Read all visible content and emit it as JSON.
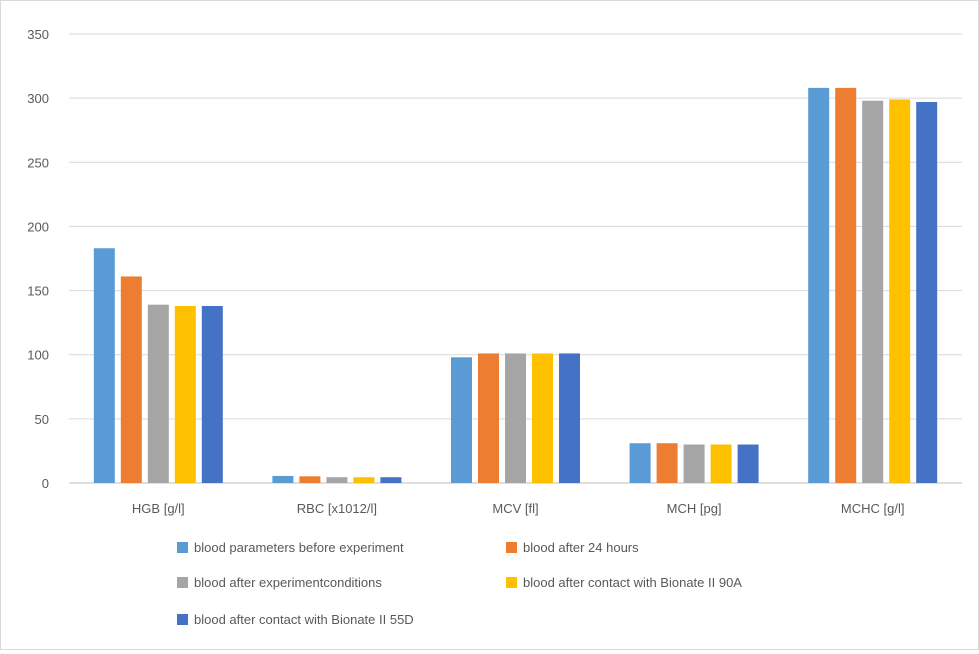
{
  "chart_data": {
    "type": "bar",
    "title": "",
    "xlabel": "",
    "ylabel": "",
    "ylim": [
      0,
      350
    ],
    "yticks": [
      0,
      50,
      100,
      150,
      200,
      250,
      300,
      350
    ],
    "grid": true,
    "legend_position": "bottom",
    "categories": [
      "HGB [g/l]",
      "RBC [x1012/l]",
      "MCV [fl]",
      "MCH [pg]",
      "MCHC [g/l]"
    ],
    "series": [
      {
        "name": "blood parameters before experiment",
        "color": "#5b9bd5",
        "values": [
          183,
          5.5,
          98,
          31,
          308
        ]
      },
      {
        "name": "blood after 24 hours",
        "color": "#ed7d31",
        "values": [
          161,
          5.2,
          101,
          31,
          308
        ]
      },
      {
        "name": "blood after experimentconditions",
        "color": "#a5a5a5",
        "values": [
          139,
          4.5,
          101,
          30,
          298
        ]
      },
      {
        "name": "blood after contact with Bionate II 90A",
        "color": "#ffc000",
        "values": [
          138,
          4.5,
          101,
          30,
          299
        ]
      },
      {
        "name": "blood after contact with Bionate II 55D",
        "color": "#4472c4",
        "values": [
          138,
          4.5,
          101,
          30,
          297
        ]
      }
    ]
  }
}
